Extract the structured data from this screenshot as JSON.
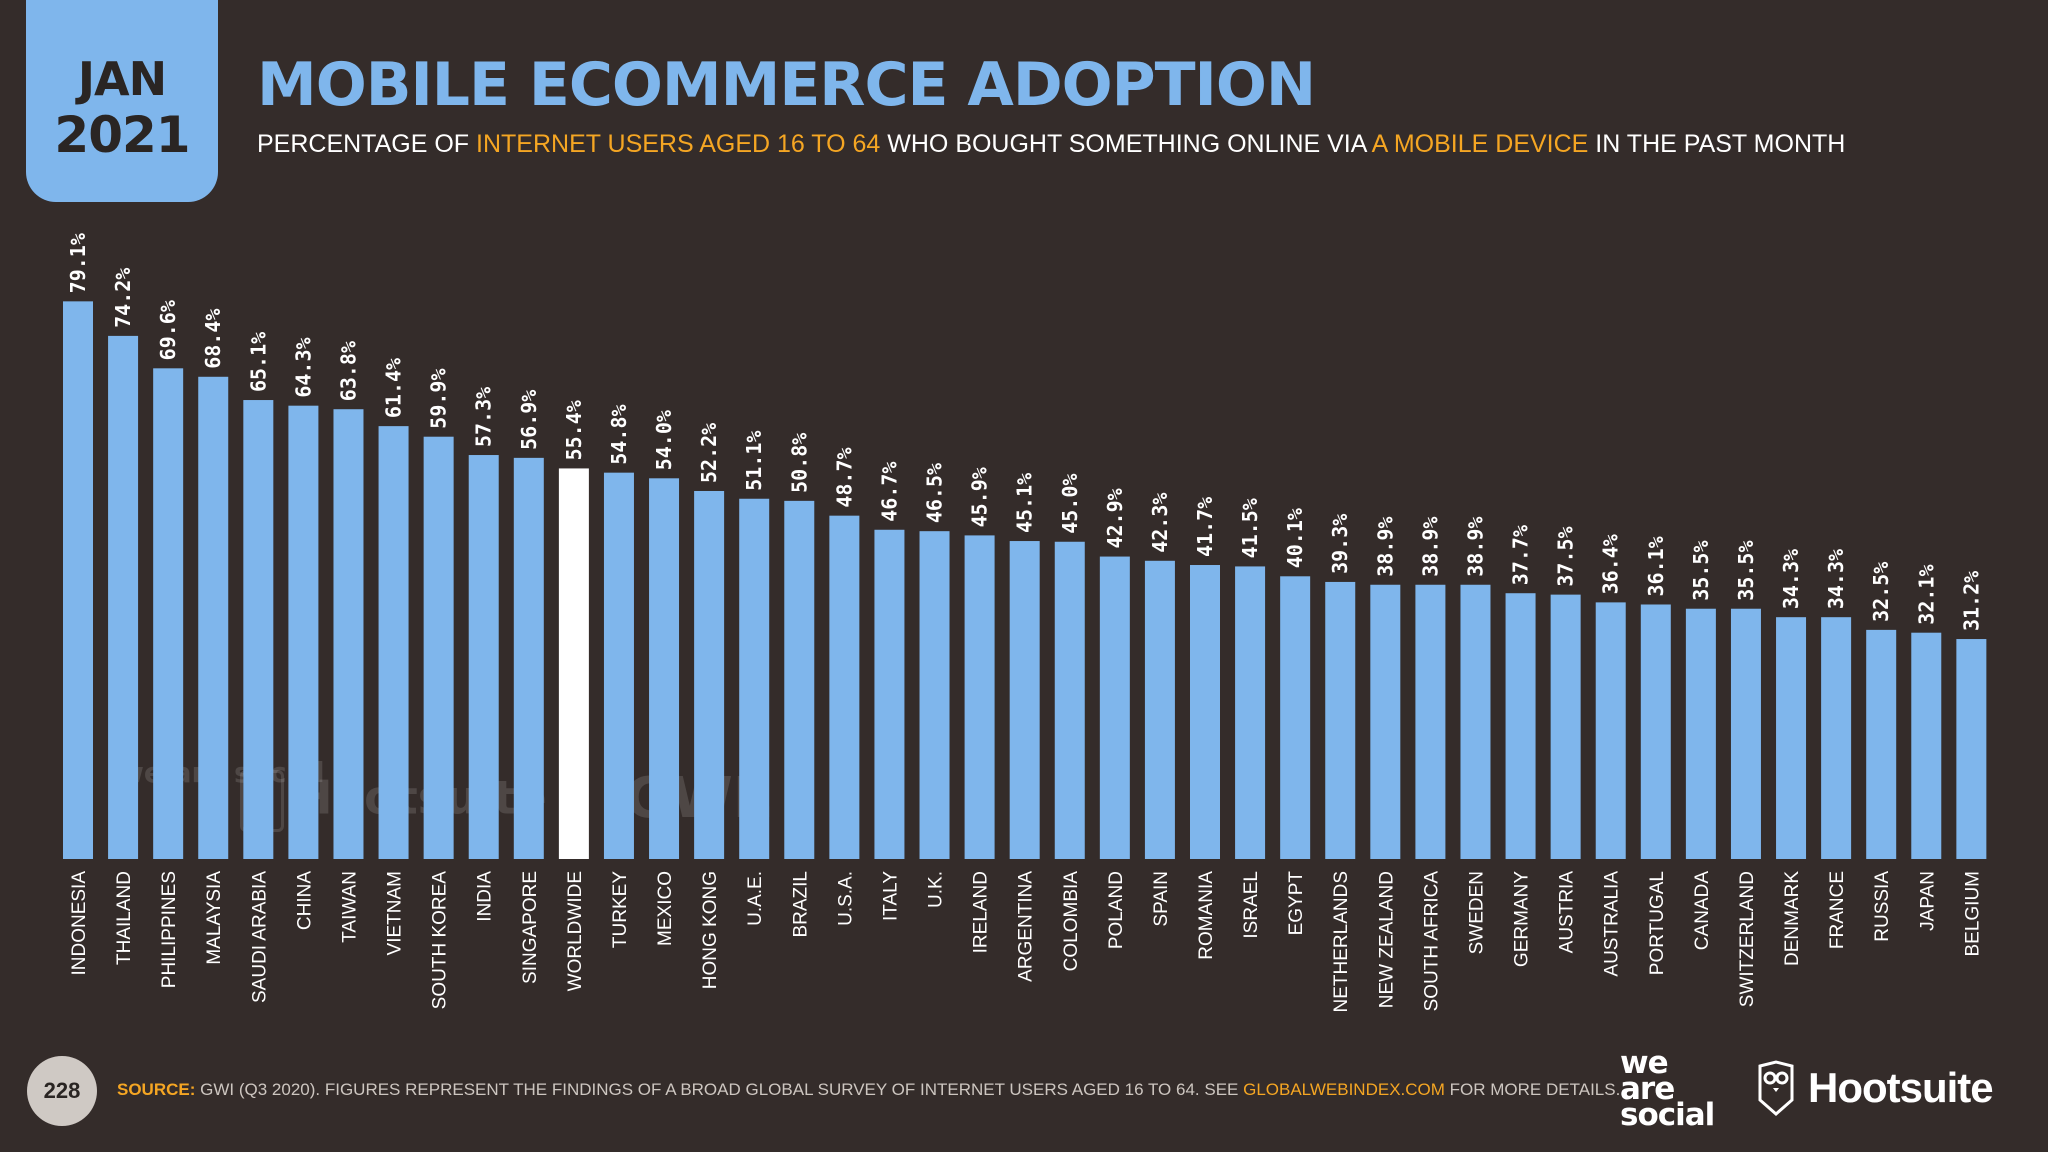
{
  "badge": {
    "month": "JAN",
    "year": "2021"
  },
  "title": "MOBILE ECOMMERCE ADOPTION",
  "subtitle": {
    "p1": "PERCENTAGE OF ",
    "h1": "INTERNET USERS AGED 16 TO 64",
    "p2": " WHO BOUGHT SOMETHING ONLINE VIA ",
    "h2": "A MOBILE DEVICE",
    "p3": " IN THE PAST MONTH"
  },
  "colors": {
    "background": "#342c2a",
    "bar": "#7fb6ec",
    "highlight_bar": "#ffffff",
    "accent": "#f5a623"
  },
  "chart_data": {
    "type": "bar",
    "highlight": "WORLDWIDE",
    "categories": [
      "INDONESIA",
      "THAILAND",
      "PHILIPPINES",
      "MALAYSIA",
      "SAUDI ARABIA",
      "CHINA",
      "TAIWAN",
      "VIETNAM",
      "SOUTH KOREA",
      "INDIA",
      "SINGAPORE",
      "WORLDWIDE",
      "TURKEY",
      "MEXICO",
      "HONG KONG",
      "U.A.E.",
      "BRAZIL",
      "U.S.A.",
      "ITALY",
      "U.K.",
      "IRELAND",
      "ARGENTINA",
      "COLOMBIA",
      "POLAND",
      "SPAIN",
      "ROMANIA",
      "ISRAEL",
      "EGYPT",
      "NETHERLANDS",
      "NEW ZEALAND",
      "SOUTH AFRICA",
      "SWEDEN",
      "GERMANY",
      "AUSTRIA",
      "AUSTRALIA",
      "PORTUGAL",
      "CANADA",
      "SWITZERLAND",
      "DENMARK",
      "FRANCE",
      "RUSSIA",
      "JAPAN",
      "BELGIUM"
    ],
    "values": [
      79.1,
      74.2,
      69.6,
      68.4,
      65.1,
      64.3,
      63.8,
      61.4,
      59.9,
      57.3,
      56.9,
      55.4,
      54.8,
      54.0,
      52.2,
      51.1,
      50.8,
      48.7,
      46.7,
      46.5,
      45.9,
      45.1,
      45.0,
      42.9,
      42.3,
      41.7,
      41.5,
      40.1,
      39.3,
      38.9,
      38.9,
      38.9,
      37.7,
      37.5,
      36.4,
      36.1,
      35.5,
      35.5,
      34.3,
      34.3,
      32.5,
      32.1,
      31.2
    ],
    "labels": [
      "79.1%",
      "74.2%",
      "69.6%",
      "68.4%",
      "65.1%",
      "64.3%",
      "63.8%",
      "61.4%",
      "59.9%",
      "57.3%",
      "56.9%",
      "55.4%",
      "54.8%",
      "54.0%",
      "52.2%",
      "51.1%",
      "50.8%",
      "48.7%",
      "46.7%",
      "46.5%",
      "45.9%",
      "45.1%",
      "45.0%",
      "42.9%",
      "42.3%",
      "41.7%",
      "41.5%",
      "40.1%",
      "39.3%",
      "38.9%",
      "38.9%",
      "38.9%",
      "37.7%",
      "37.5%",
      "36.4%",
      "36.1%",
      "35.5%",
      "35.5%",
      "34.3%",
      "34.3%",
      "32.5%",
      "32.1%",
      "31.2%"
    ],
    "ylim": [
      0,
      100
    ],
    "grid": false
  },
  "watermarks": {
    "we_are_social": "we are social",
    "hootsuite": "Hootsuite",
    "gwi": "GWI."
  },
  "footer": {
    "page_number": "228",
    "source_label": "SOURCE:",
    "source_text": " GWI (Q3 2020). FIGURES REPRESENT THE FINDINGS OF A BROAD GLOBAL SURVEY OF INTERNET USERS AGED 16 TO 64. SEE ",
    "source_link": "GLOBALWEBINDEX.COM",
    "source_tail": " FOR MORE DETAILS."
  },
  "logos": {
    "was_1": "we",
    "was_2": "are",
    "was_3": "social",
    "hootsuite": "Hootsuite"
  }
}
